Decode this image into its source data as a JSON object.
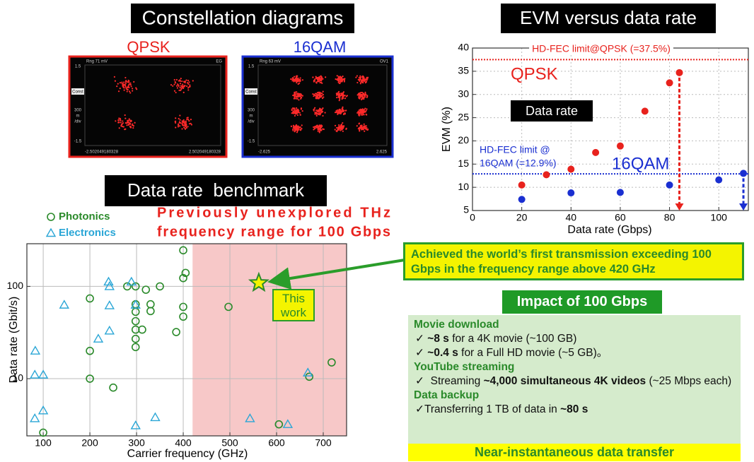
{
  "constellations": {
    "title": "Constellation diagrams",
    "panels": [
      {
        "label": "QPSK",
        "color": "#e8221d",
        "screen": {
          "range": "Rng 71 mV",
          "tag": "EG",
          "ymax": "1.5",
          "mode": "Const",
          "scale": [
            "300",
            "m",
            "/div"
          ],
          "ymin": "-1.5",
          "xmin": "-2.502049180328",
          "xmax": "2.502049180328"
        }
      },
      {
        "label": "16QAM",
        "color": "#1a2fd1",
        "screen": {
          "range": "Rng 63 mV",
          "tag": "OV1",
          "ymax": "1.5",
          "mode": "Const",
          "scale": [
            "300",
            "m",
            "/div"
          ],
          "ymin": "-1.5",
          "xmin": "-2.625",
          "xmax": "2.625"
        }
      }
    ]
  },
  "chart_data": [
    {
      "type": "scatter",
      "title": "EVM versus data rate",
      "x_label": "Data rate (Gbps)",
      "y_label": "EVM (%)",
      "xlim": [
        0,
        112
      ],
      "ylim": [
        5,
        40
      ],
      "xticks": [
        0,
        20,
        40,
        60,
        80,
        100
      ],
      "yticks": [
        5,
        10,
        15,
        20,
        25,
        30,
        35,
        40
      ],
      "grid": true,
      "series": [
        {
          "name": "QPSK",
          "color": "#e8221d",
          "marker": "dot",
          "x": [
            20,
            30,
            40,
            50,
            60,
            70,
            80,
            84
          ],
          "values": [
            10.5,
            12.7,
            13.9,
            17.5,
            18.9,
            26.4,
            32.5,
            34.7
          ]
        },
        {
          "name": "16QAM",
          "color": "#1a2fd1",
          "marker": "dot",
          "x": [
            20,
            40,
            60,
            80,
            100,
            110
          ],
          "values": [
            7.4,
            8.8,
            8.9,
            10.5,
            11.6,
            13.0
          ]
        }
      ],
      "limits": [
        {
          "label_lines": [
            "HD-FEC limit@QPSK (=37.5%)"
          ],
          "value": 37.5,
          "color": "#e8221d"
        },
        {
          "label_lines": [
            "HD-FEC limit @",
            "16QAM (=12.9%)"
          ],
          "value": 12.9,
          "color": "#1a2fd1"
        }
      ],
      "annotations": [
        "Data rate"
      ]
    },
    {
      "type": "scatter",
      "title": "Data rate  benchmark",
      "x_label": "Carrier frequency (GHz)",
      "y_label": "Data rate (Gbit/s)",
      "xlim": [
        65,
        750
      ],
      "ylim": [
        2.4,
        290
      ],
      "log_y": true,
      "xticks": [
        100,
        200,
        300,
        400,
        500,
        600,
        700
      ],
      "yticks": [
        10,
        100
      ],
      "grid": true,
      "highlight": {
        "range": [
          420,
          750
        ],
        "color": "#f7c8c8",
        "label_lines": [
          "Previously unexplored THz",
          "frequency range for 100 Gbps"
        ]
      },
      "series": [
        {
          "name": "Photonics",
          "color": "#2a8a2a",
          "marker": "circle",
          "x": [
            400,
            405,
            400,
            200,
            200,
            200,
            250,
            280,
            298,
            320,
            350,
            298,
            298,
            298,
            298,
            298,
            298,
            312,
            330,
            330,
            385,
            400,
            400,
            497,
            605,
            670,
            718,
            100
          ],
          "values": [
            246,
            140,
            123,
            74,
            20,
            10,
            8,
            100,
            100,
            92,
            100,
            64,
            53,
            42,
            34,
            27,
            22,
            34,
            64,
            54,
            32,
            60,
            47,
            60,
            3.2,
            10.5,
            15,
            2.6
          ]
        },
        {
          "name": "Electronics",
          "color": "#2aa6d6",
          "marker": "triangle",
          "x": [
            83,
            82,
            100,
            100,
            82,
            145,
            218,
            242,
            242,
            242,
            240,
            289,
            298,
            298,
            340,
            543,
            624,
            667
          ],
          "values": [
            20,
            11,
            11,
            4.5,
            3.7,
            63,
            27,
            33,
            62,
            100,
            112,
            112,
            63,
            3.1,
            3.8,
            3.7,
            3.2,
            11.6
          ]
        },
        {
          "name": "This work",
          "color": "#f4f400",
          "marker": "star",
          "x": [
            562
          ],
          "values": [
            109
          ]
        }
      ]
    }
  ],
  "callout": "Achieved the world’s first transmission exceeding 100 Gbps in the frequency range above 420 GHz",
  "impact": {
    "title": "Impact of 100 Gbps",
    "sections": [
      {
        "heading": "Movie download",
        "items": [
          [
            "✓ ",
            "~8 s",
            " for a 4K movie (~100 GB)"
          ],
          [
            "✓ ",
            "~0.4 s",
            " for a Full HD movie (~5 GB)。"
          ]
        ]
      },
      {
        "heading": "YouTube streaming",
        "items": [
          [
            "✓  Streaming ",
            "~4,000 simultaneous 4K videos",
            " (~25 Mbps each)"
          ]
        ]
      },
      {
        "heading": "Data backup",
        "items": [
          [
            "✓Transferring 1 TB of data in ",
            "~80 s"
          ]
        ]
      }
    ],
    "footer": "Near-instantaneous data transfer"
  }
}
